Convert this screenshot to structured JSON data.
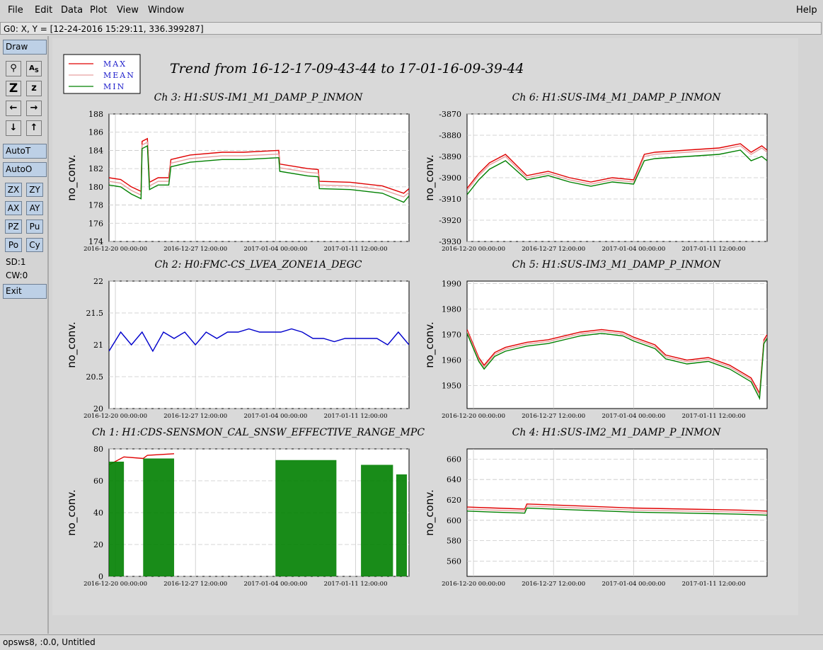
{
  "menu": {
    "file": "File",
    "edit": "Edit",
    "data": "Data",
    "plot": "Plot",
    "view": "View",
    "window": "Window",
    "help": "Help"
  },
  "status_readout": "G0: X, Y = [12-24-2016 15:29:11, 336.399287]",
  "toolbar": {
    "draw": "Draw",
    "auto_t": "AutoT",
    "auto_o": "AutoO",
    "zx": "ZX",
    "zy": "ZY",
    "ax": "AX",
    "ay": "AY",
    "pz": "PZ",
    "pu": "Pu",
    "po": "Po",
    "cy": "Cy",
    "sd": "SD:1",
    "cw": "CW:0",
    "exit": "Exit",
    "icons": [
      "key-icon",
      "as-icon",
      "zoom-Z-icon",
      "zoom-z-icon",
      "arrow-left-icon",
      "arrow-right-icon",
      "arrow-down-icon",
      "arrow-up-icon"
    ]
  },
  "bottom_status": "opsws8, :0.0, Untitled",
  "legend": [
    {
      "label": "MAX",
      "color": "#e00000"
    },
    {
      "label": "MEAN",
      "color": "#e8a0a0"
    },
    {
      "label": "MIN",
      "color": "#008000"
    }
  ],
  "main_title": "Trend from 16-12-17-09-43-44 to 17-01-16-09-39-44",
  "chart_data": [
    {
      "type": "line",
      "panel": "top-left",
      "title": "Ch 3: H1:SUS-IM1_M1_DAMP_P_INMON",
      "ylabel": "no_conv.",
      "ylim": [
        174,
        188
      ],
      "yticks": [
        174,
        176,
        178,
        180,
        182,
        184,
        186,
        188
      ],
      "xticks": [
        "2016-12-20 00:00:00",
        "2016-12-27 12:00:00",
        "2017-01-04 00:00:00",
        "2017-01-11 12:00:00"
      ],
      "xtick_pos": [
        0,
        7.5,
        15,
        22.5
      ],
      "xlim": [
        -0.6,
        27.5
      ],
      "series": [
        {
          "name": "MAX",
          "color": "#e00000",
          "x": [
            -0.6,
            0.5,
            1.5,
            2.4,
            2.5,
            3.0,
            3.2,
            4.0,
            5.0,
            5.2,
            7.0,
            10.0,
            12.0,
            15.3,
            15.4,
            18.0,
            19.0,
            19.1,
            22.0,
            25.0,
            27.0,
            27.5
          ],
          "y": [
            181,
            180.8,
            180,
            179.5,
            185,
            185.3,
            180.5,
            181,
            181,
            183,
            183.5,
            183.8,
            183.8,
            184,
            182.5,
            182,
            181.9,
            180.6,
            180.5,
            180.1,
            179.3,
            179.8
          ]
        },
        {
          "name": "MEAN",
          "color": "#e8a0a0",
          "x": [
            -0.6,
            0.5,
            1.5,
            2.4,
            2.5,
            3.0,
            3.2,
            4.0,
            5.0,
            5.2,
            7.0,
            10.0,
            12.0,
            15.3,
            15.4,
            18.0,
            19.0,
            19.1,
            22.0,
            25.0,
            27.0,
            27.5
          ],
          "y": [
            180.6,
            180.4,
            179.6,
            179.1,
            184.6,
            184.9,
            180.1,
            180.6,
            180.6,
            182.6,
            183.1,
            183.4,
            183.4,
            183.6,
            182.1,
            181.6,
            181.5,
            180.2,
            180.1,
            179.7,
            178.9,
            179.4
          ]
        },
        {
          "name": "MIN",
          "color": "#008000",
          "x": [
            -0.6,
            0.5,
            1.5,
            2.4,
            2.5,
            3.0,
            3.2,
            4.0,
            5.0,
            5.2,
            7.0,
            10.0,
            12.0,
            15.3,
            15.4,
            18.0,
            19.0,
            19.1,
            22.0,
            25.0,
            27.0,
            27.5
          ],
          "y": [
            180.2,
            180,
            179.2,
            178.7,
            184.2,
            184.5,
            179.7,
            180.2,
            180.2,
            182.2,
            182.7,
            183,
            183,
            183.2,
            181.7,
            181.2,
            181.1,
            179.8,
            179.7,
            179.3,
            178.3,
            179
          ]
        }
      ]
    },
    {
      "type": "line",
      "panel": "top-right",
      "title": "Ch 6: H1:SUS-IM4_M1_DAMP_P_INMON",
      "ylabel": "no_conv.",
      "ylim": [
        -3930,
        -3870
      ],
      "yticks": [
        -3930,
        -3920,
        -3910,
        -3900,
        -3890,
        -3880,
        -3870
      ],
      "xticks": [
        "2016-12-20 00:00:00",
        "2016-12-27 12:00:00",
        "2017-01-04 00:00:00",
        "2017-01-11 12:00:00"
      ],
      "xtick_pos": [
        0,
        7.5,
        15,
        22.5
      ],
      "xlim": [
        -0.6,
        27.5
      ],
      "series": [
        {
          "name": "MAX",
          "color": "#e00000",
          "x": [
            -0.6,
            0.5,
            1.5,
            3.0,
            5.0,
            7.0,
            9.0,
            11.0,
            13.0,
            15.0,
            16.0,
            17.0,
            20.0,
            23.0,
            25.0,
            26.0,
            27.0,
            27.5
          ],
          "y": [
            -3905,
            -3898,
            -3893,
            -3889,
            -3899,
            -3897,
            -3900,
            -3902,
            -3900,
            -3901,
            -3889,
            -3888,
            -3887,
            -3886,
            -3884,
            -3888,
            -3885,
            -3887
          ]
        },
        {
          "name": "MEAN",
          "color": "#e8a0a0",
          "x": [
            -0.6,
            0.5,
            1.5,
            3.0,
            5.0,
            7.0,
            9.0,
            11.0,
            13.0,
            15.0,
            16.0,
            17.0,
            20.0,
            23.0,
            25.0,
            26.0,
            27.0,
            27.5
          ],
          "y": [
            -3906,
            -3899,
            -3894,
            -3890,
            -3900,
            -3898,
            -3901,
            -3903,
            -3901,
            -3902,
            -3890,
            -3889,
            -3888,
            -3887,
            -3885,
            -3889,
            -3886,
            -3888
          ]
        },
        {
          "name": "MIN",
          "color": "#008000",
          "x": [
            -0.6,
            0.5,
            1.5,
            3.0,
            5.0,
            7.0,
            9.0,
            11.0,
            13.0,
            15.0,
            16.0,
            17.0,
            20.0,
            23.0,
            25.0,
            26.0,
            27.0,
            27.5
          ],
          "y": [
            -3908,
            -3901,
            -3896,
            -3892,
            -3901,
            -3899,
            -3902,
            -3904,
            -3902,
            -3903,
            -3892,
            -3891,
            -3890,
            -3889,
            -3887,
            -3892,
            -3890,
            -3892
          ]
        }
      ]
    },
    {
      "type": "line",
      "panel": "middle-left",
      "title": "Ch 2: H0:FMC-CS_LVEA_ZONE1A_DEGC",
      "ylabel": "no_conv.",
      "ylim": [
        20,
        22
      ],
      "yticks": [
        20,
        20.5,
        21,
        21.5,
        22
      ],
      "xticks": [
        "2016-12-20 00:00:00",
        "2016-12-27 12:00:00",
        "2017-01-04 00:00:00",
        "2017-01-11 12:00:00"
      ],
      "xtick_pos": [
        0,
        7.5,
        15,
        22.5
      ],
      "xlim": [
        -0.6,
        27.5
      ],
      "series": [
        {
          "color": "#0000cc",
          "x": [
            -0.6,
            0.5,
            1.5,
            2.5,
            3.5,
            4.5,
            5.5,
            6.5,
            7.5,
            8.5,
            9.5,
            10.5,
            11.5,
            12.5,
            13.5,
            14.5,
            15.5,
            16.5,
            17.5,
            18.5,
            19.5,
            20.5,
            21.5,
            22.5,
            23.5,
            24.5,
            25.5,
            26.5,
            27.5
          ],
          "y": [
            20.9,
            21.2,
            21.0,
            21.2,
            20.9,
            21.2,
            21.1,
            21.2,
            21.0,
            21.2,
            21.1,
            21.2,
            21.2,
            21.25,
            21.2,
            21.2,
            21.2,
            21.25,
            21.2,
            21.1,
            21.1,
            21.05,
            21.1,
            21.1,
            21.1,
            21.1,
            21.0,
            21.2,
            21.0
          ]
        }
      ]
    },
    {
      "type": "line",
      "panel": "middle-right",
      "title": "Ch 5: H1:SUS-IM3_M1_DAMP_P_INMON",
      "ylabel": "no_conv.",
      "ylim": [
        1941,
        1991
      ],
      "yticks": [
        1950,
        1960,
        1970,
        1980,
        1990
      ],
      "xticks": [
        "2016-12-20 00:00:00",
        "2016-12-27 12:00:00",
        "2017-01-04 00:00:00",
        "2017-01-11 12:00:00"
      ],
      "xtick_pos": [
        0,
        7.5,
        15,
        22.5
      ],
      "xlim": [
        -0.6,
        27.5
      ],
      "series": [
        {
          "name": "MAX",
          "color": "#e00000",
          "x": [
            -0.6,
            0.5,
            1.0,
            2.0,
            3.0,
            5.0,
            7.0,
            9.0,
            10.0,
            12.0,
            14.0,
            15.0,
            17.0,
            18.0,
            20.0,
            22.0,
            24.0,
            26.0,
            26.8,
            27.2,
            27.5
          ],
          "y": [
            1972,
            1961,
            1958,
            1963,
            1965,
            1967,
            1968,
            1970,
            1971,
            1972,
            1971,
            1969,
            1966,
            1962,
            1960,
            1961,
            1958,
            1953,
            1947,
            1968,
            1970
          ]
        },
        {
          "name": "MEAN",
          "color": "#e8a0a0",
          "x": [
            -0.6,
            0.5,
            1.0,
            2.0,
            3.0,
            5.0,
            7.0,
            9.0,
            10.0,
            12.0,
            14.0,
            15.0,
            17.0,
            18.0,
            20.0,
            22.0,
            24.0,
            26.0,
            26.8,
            27.2,
            27.5
          ],
          "y": [
            1971.3,
            1960.3,
            1957.3,
            1962.3,
            1964.3,
            1966.3,
            1967.3,
            1969.3,
            1970.3,
            1971.3,
            1970.3,
            1968.3,
            1965.3,
            1961.3,
            1959.3,
            1960.3,
            1957.3,
            1952.3,
            1946.3,
            1967.3,
            1969.3
          ]
        },
        {
          "name": "MIN",
          "color": "#008000",
          "x": [
            -0.6,
            0.5,
            1.0,
            2.0,
            3.0,
            5.0,
            7.0,
            9.0,
            10.0,
            12.0,
            14.0,
            15.0,
            17.0,
            18.0,
            20.0,
            22.0,
            24.0,
            26.0,
            26.8,
            27.2,
            27.5
          ],
          "y": [
            1970.5,
            1959.5,
            1956.5,
            1961.5,
            1963.5,
            1965.5,
            1966.5,
            1968.5,
            1969.5,
            1970.5,
            1969.5,
            1967.5,
            1964.5,
            1960.5,
            1958.5,
            1959.5,
            1956.5,
            1951.5,
            1945,
            1966.5,
            1968.5
          ]
        }
      ]
    },
    {
      "type": "area",
      "panel": "bottom-left",
      "title": "Ch 1: H1:CDS-SENSMON_CAL_SNSW_EFFECTIVE_RANGE_MPC",
      "ylabel": "no_conv.",
      "ylim": [
        0,
        80
      ],
      "yticks": [
        0,
        20,
        40,
        60,
        80
      ],
      "xticks": [
        "2016-12-20 00:00:00",
        "2016-12-27 12:00:00",
        "2017-01-04 00:00:00",
        "2017-01-11 12:00:00"
      ],
      "xtick_pos": [
        0,
        7.5,
        15,
        22.5
      ],
      "xlim": [
        -0.6,
        27.5
      ],
      "series": [
        {
          "name": "MAX",
          "color": "#e00000",
          "x": [
            -0.6,
            0.8,
            2.6,
            3.0,
            5.5
          ],
          "y": [
            70,
            75,
            74,
            76,
            77
          ]
        },
        {
          "name": "MIN",
          "color": "#008000",
          "segments": [
            [
              -0.6,
              0.8
            ],
            [
              2.6,
              5.5
            ],
            [
              15.0,
              20.7
            ],
            [
              23.0,
              26.0
            ],
            [
              26.3,
              27.3
            ]
          ],
          "y": [
            72,
            74,
            73,
            70,
            64
          ]
        }
      ]
    },
    {
      "type": "line",
      "panel": "bottom-right",
      "title": "Ch 4: H1:SUS-IM2_M1_DAMP_P_INMON",
      "ylabel": "no_conv.",
      "ylim": [
        545,
        670
      ],
      "yticks": [
        560,
        580,
        600,
        620,
        640,
        660
      ],
      "xticks": [
        "2016-12-20 00:00:00",
        "2016-12-27 12:00:00",
        "2017-01-04 00:00:00",
        "2017-01-11 12:00:00"
      ],
      "xtick_pos": [
        0,
        7.5,
        15,
        22.5
      ],
      "xlim": [
        -0.6,
        27.5
      ],
      "series": [
        {
          "name": "MAX",
          "color": "#e00000",
          "x": [
            -0.6,
            2.0,
            4.8,
            5.0,
            10.0,
            15.0,
            20.0,
            25.0,
            27.5
          ],
          "y": [
            613,
            612,
            611,
            616,
            614,
            612,
            611,
            610,
            609
          ]
        },
        {
          "name": "MEAN",
          "color": "#e8a0a0",
          "x": [
            -0.6,
            2.0,
            4.8,
            5.0,
            10.0,
            15.0,
            20.0,
            25.0,
            27.5
          ],
          "y": [
            611,
            610,
            609,
            614,
            612,
            610,
            609,
            608,
            607
          ]
        },
        {
          "name": "MIN",
          "color": "#008000",
          "x": [
            -0.6,
            2.0,
            4.8,
            5.0,
            10.0,
            15.0,
            20.0,
            25.0,
            27.5
          ],
          "y": [
            609,
            608,
            607,
            612,
            610,
            608,
            607,
            606,
            605
          ]
        }
      ]
    }
  ]
}
